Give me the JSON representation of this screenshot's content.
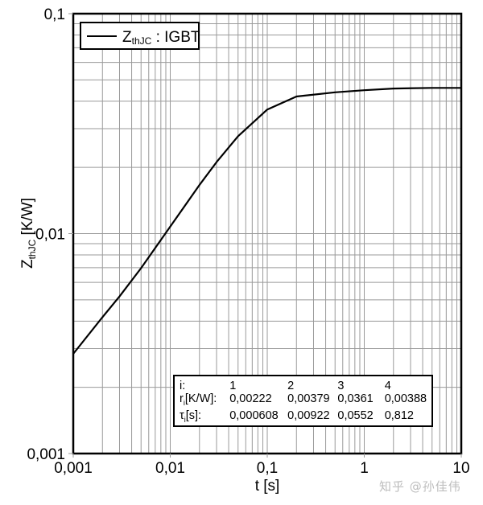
{
  "chart_data": {
    "type": "line",
    "title": "",
    "xlabel": "t [s]",
    "ylabel": "ZthJC [K/W]",
    "ylabel_main": "Z",
    "ylabel_sub": "thJC",
    "ylabel_unit": " [K/W]",
    "xscale": "log",
    "yscale": "log",
    "xlim": [
      0.001,
      10
    ],
    "ylim": [
      0.001,
      0.1
    ],
    "grid": true,
    "x_tick_labels": [
      "0,001",
      "0,01",
      "0,1",
      "1",
      "10"
    ],
    "x_ticks": [
      0.001,
      0.01,
      0.1,
      1,
      10
    ],
    "y_tick_labels": [
      "0,001",
      "0,01",
      "0,1"
    ],
    "y_ticks": [
      0.001,
      0.01,
      0.1
    ],
    "legend": {
      "position": "top-left",
      "entries": [
        {
          "main": "Z",
          "sub": "thJC",
          "rest": " : IGBT"
        }
      ]
    },
    "series": [
      {
        "name": "ZthJC : IGBT",
        "color": "#000000",
        "x": [
          0.001,
          0.002,
          0.003,
          0.005,
          0.01,
          0.02,
          0.03,
          0.05,
          0.1,
          0.2,
          0.5,
          1,
          2,
          5,
          10
        ],
        "y": [
          0.00284,
          0.00417,
          0.00518,
          0.00696,
          0.01076,
          0.01664,
          0.02114,
          0.02773,
          0.03666,
          0.042,
          0.04389,
          0.04486,
          0.04566,
          0.04598,
          0.04599
        ]
      }
    ],
    "annotation_table": {
      "headers": [
        "i:",
        "1",
        "2",
        "3",
        "4"
      ],
      "rows": [
        {
          "label": "ri[K/W]:",
          "label_main": "r",
          "label_sub": "i",
          "label_rest": "[K/W]:",
          "values": [
            "0,00222",
            "0,00379",
            "0,0361",
            "0,00388"
          ]
        },
        {
          "label": "τi[s]:",
          "label_main": "τ",
          "label_sub": "i",
          "label_rest": "[s]:",
          "values": [
            "0,000608",
            "0,00922",
            "0,0552",
            "0,812"
          ]
        }
      ]
    }
  },
  "watermark": "知乎 @孙佳伟"
}
